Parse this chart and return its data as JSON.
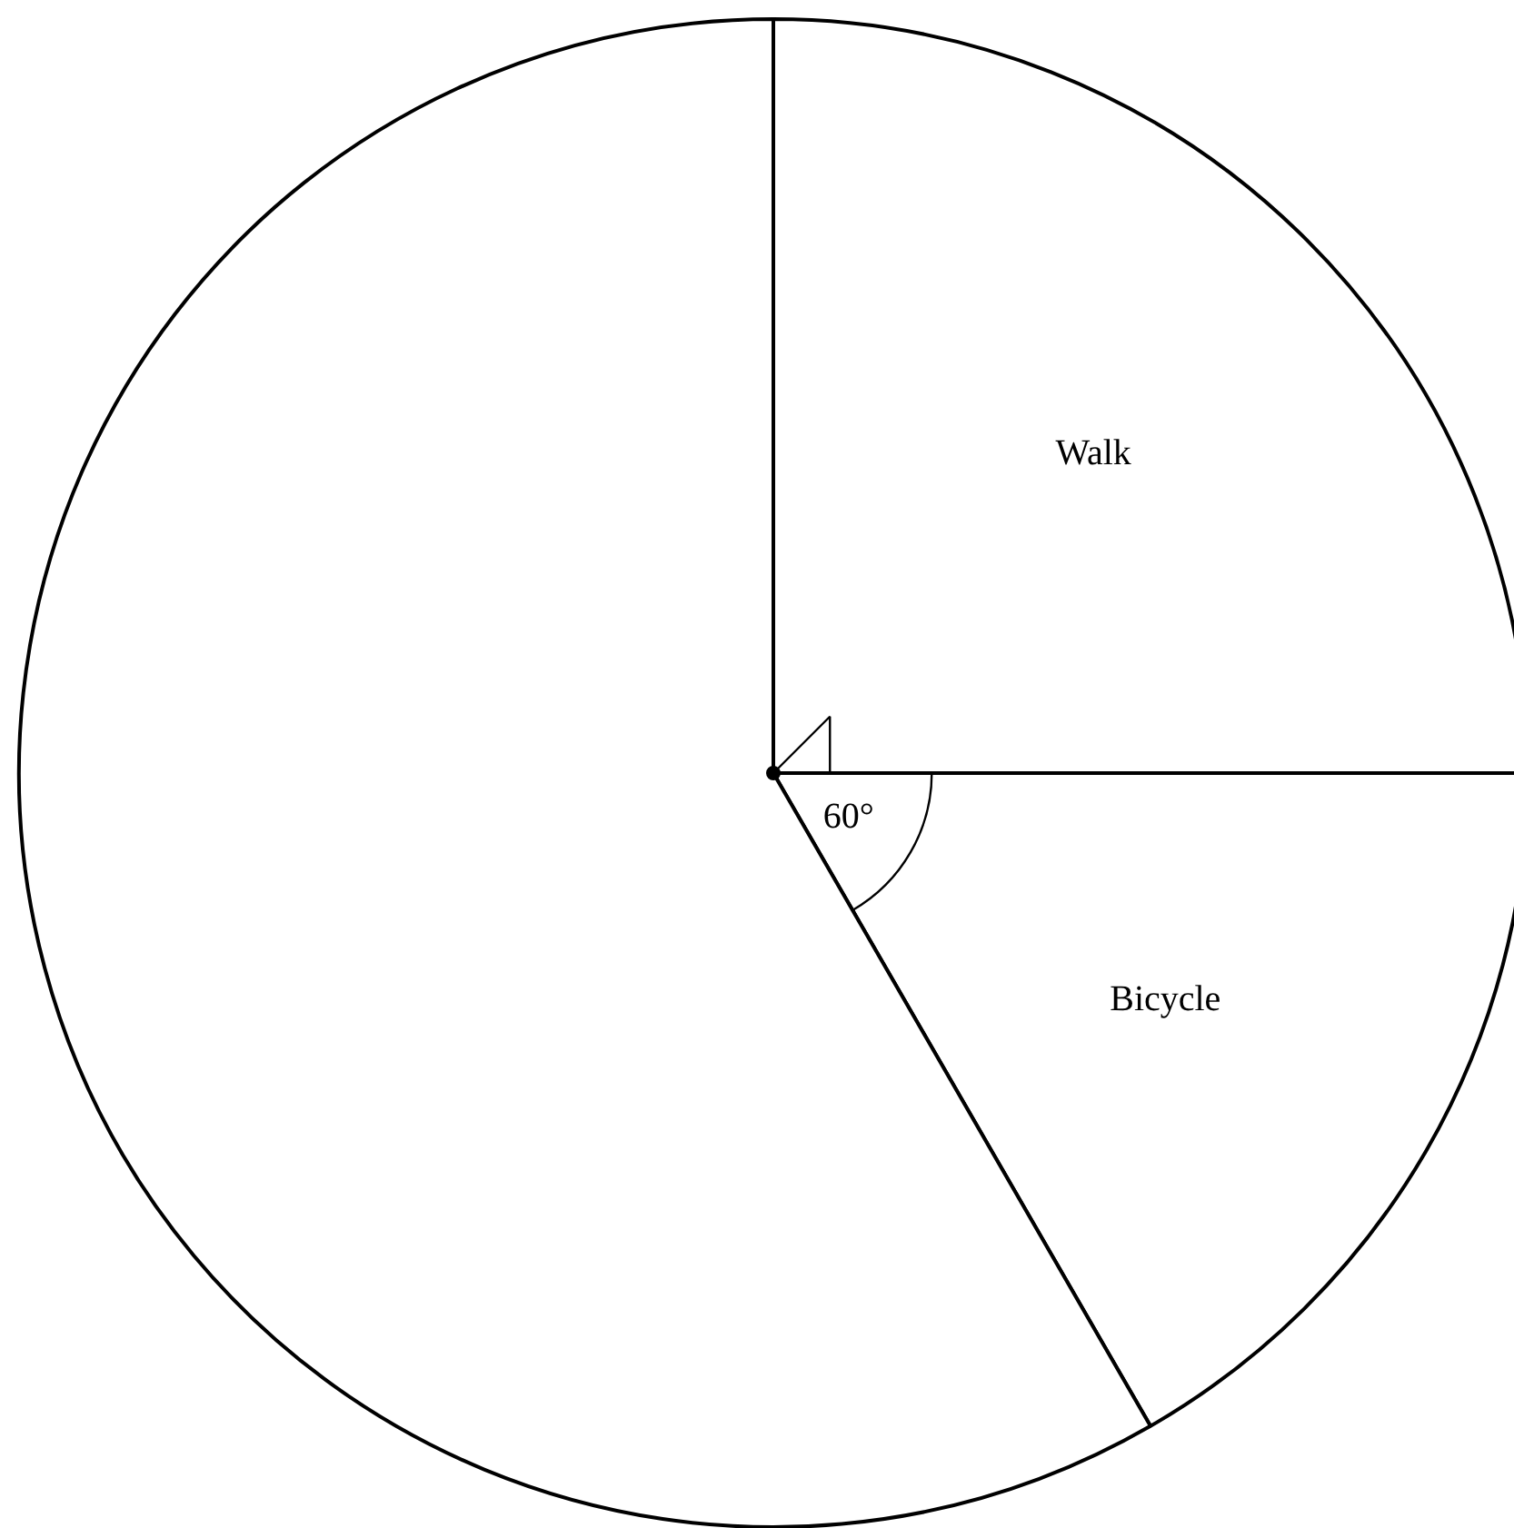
{
  "chart_data": {
    "type": "pie",
    "categories": [
      "Walk",
      "Bicycle",
      null
    ],
    "values": [
      25,
      16.6667,
      58.3333
    ],
    "colors": [
      "#ffffff",
      "#ffffff",
      "#ffffff"
    ],
    "annotations": [
      "60°"
    ]
  }
}
